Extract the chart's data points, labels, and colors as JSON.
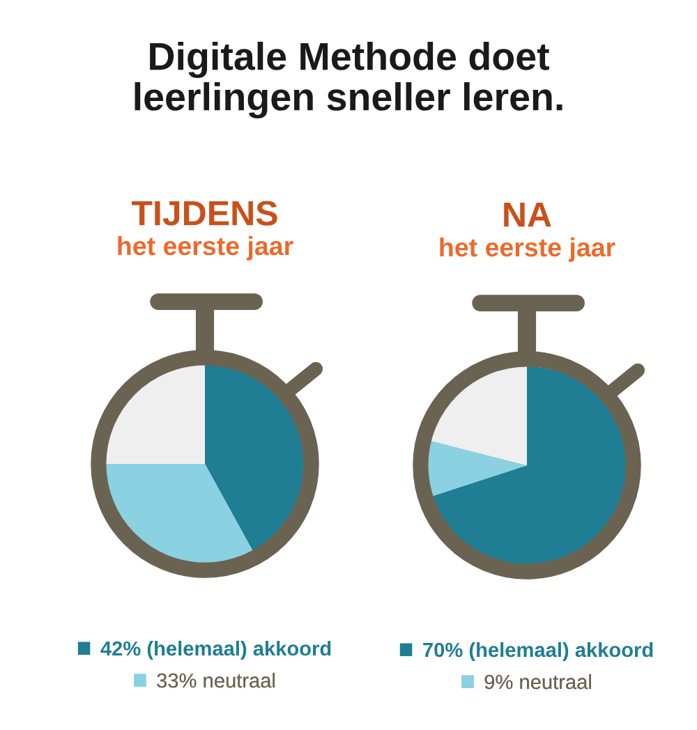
{
  "chart_data": [
    {
      "type": "other",
      "title": "Digitale Methode doet\nleerlingen sneller leren."
    },
    {
      "type": "pie",
      "title": "TIJDENS",
      "subtitle": "het eerste jaar",
      "categories": [
        "(helemaal) akkoord",
        "neutraal",
        null
      ],
      "values": [
        42,
        33,
        25
      ],
      "value_labels": [
        "42%",
        "33%",
        null
      ],
      "colors": [
        "#1f7d94",
        "#8ad1e1",
        "#efefef"
      ],
      "legend": "bottom"
    },
    {
      "type": "pie",
      "title": "NA",
      "subtitle": "het eerste jaar",
      "categories": [
        "(helemaal) akkoord",
        "neutraal",
        null
      ],
      "values": [
        70,
        9,
        21
      ],
      "value_labels": [
        "70%",
        "9%",
        null
      ],
      "colors": [
        "#1f7d94",
        "#8ad1e1",
        "#efefef"
      ],
      "legend": "bottom"
    }
  ]
}
